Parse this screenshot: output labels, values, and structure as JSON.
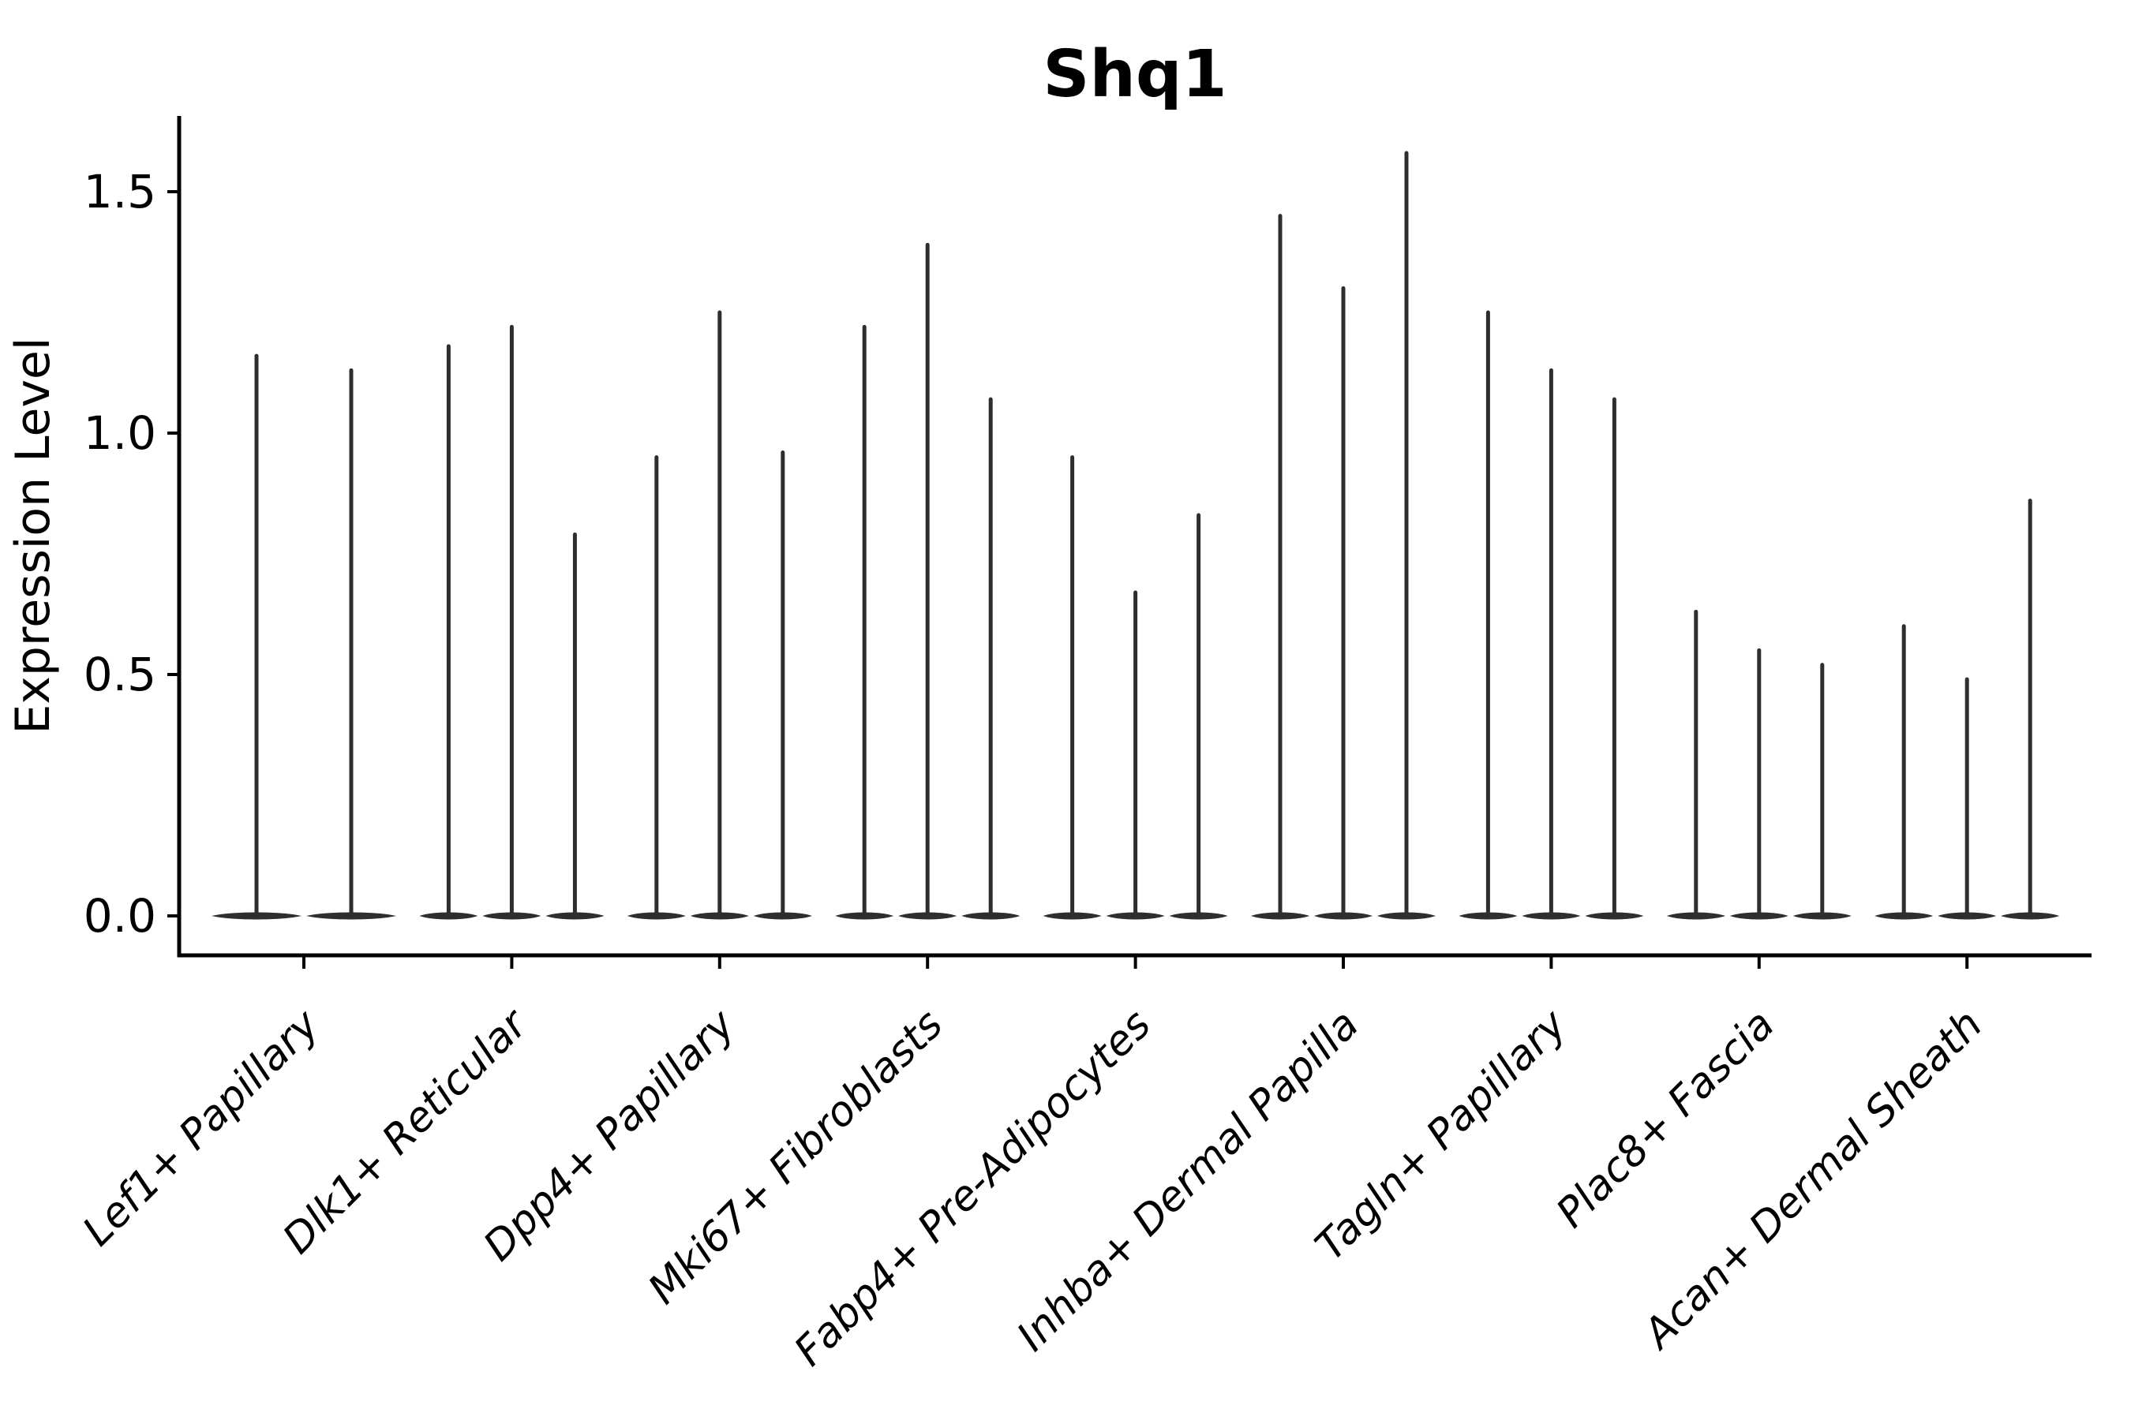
{
  "chart_data": {
    "type": "violin",
    "title": "Shq1",
    "ylabel": "Expression Level",
    "xlabel": "",
    "yticks": [
      0.0,
      0.5,
      1.0,
      1.5
    ],
    "ytick_labels": [
      "0.0",
      "0.5",
      "1.0",
      "1.5"
    ],
    "ylim": [
      -0.08,
      1.66
    ],
    "grid": false,
    "legend": null,
    "x_tick_label_rotation_deg": 45,
    "x_tick_label_fontstyle": "italic",
    "categories": [
      "Lef1+ Papillary",
      "Dlk1+ Reticular",
      "Dpp4+ Papillary",
      "Mki67+ Fibroblasts",
      "Fabp4+ Pre-Adipocytes",
      "Inhba+ Dermal Papilla",
      "Tagln+ Papillary",
      "Plac8+ Fascia",
      "Acan+ Dermal Sheath"
    ],
    "series": [
      {
        "category": "Lef1+ Papillary",
        "violin_max_expression": [
          1.16,
          1.13
        ]
      },
      {
        "category": "Dlk1+ Reticular",
        "violin_max_expression": [
          1.18,
          1.22,
          0.79
        ]
      },
      {
        "category": "Dpp4+ Papillary",
        "violin_max_expression": [
          0.95,
          1.25,
          0.96
        ]
      },
      {
        "category": "Mki67+ Fibroblasts",
        "violin_max_expression": [
          1.22,
          1.39,
          1.07
        ]
      },
      {
        "category": "Fabp4+ Pre-Adipocytes",
        "violin_max_expression": [
          0.95,
          0.67,
          0.83
        ]
      },
      {
        "category": "Inhba+ Dermal Papilla",
        "violin_max_expression": [
          1.45,
          1.3,
          1.58
        ]
      },
      {
        "category": "Tagln+ Papillary",
        "violin_max_expression": [
          1.25,
          1.13,
          1.07
        ]
      },
      {
        "category": "Plac8+ Fascia",
        "violin_max_expression": [
          0.63,
          0.55,
          0.52
        ]
      },
      {
        "category": "Acan+ Dermal Sheath",
        "violin_max_expression": [
          0.6,
          0.49,
          0.86
        ]
      }
    ],
    "shape_note": "Each violin is collapsed at 0 expression (flat tapered lens on the baseline) with a thin vertical spike reaching the listed max expression value.",
    "colors": {
      "violin": "#2e2e2e",
      "axis": "#000000",
      "text": "#000000",
      "background": "#ffffff"
    }
  }
}
